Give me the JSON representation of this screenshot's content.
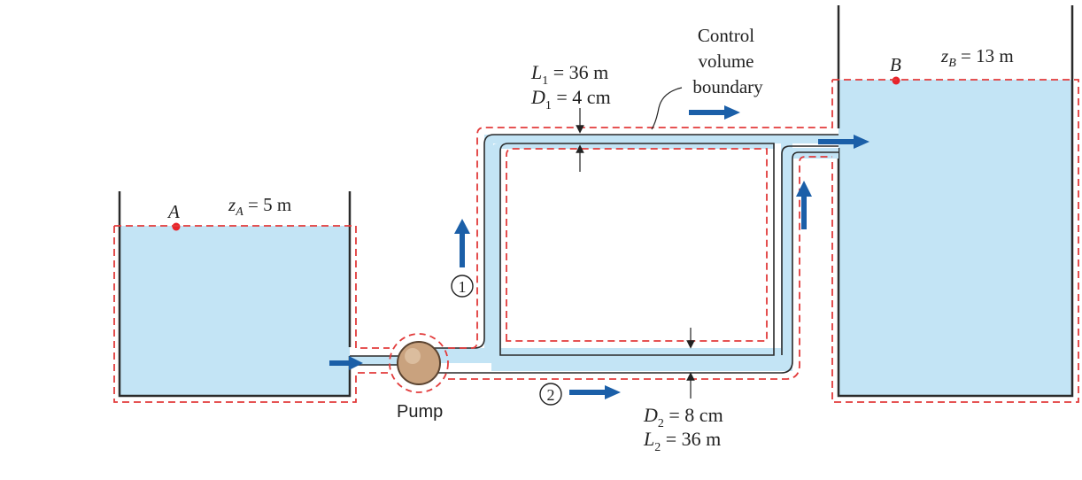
{
  "colors": {
    "water": "#c3e4f5",
    "wall": "#2a2a2a",
    "boundary": "#e23b3b",
    "arrow": "#1b5fa8",
    "point": "#e8232a",
    "pump_fill": "#c9a27e"
  },
  "tank_a": {
    "point_label": "A",
    "elevation": {
      "var": "z",
      "sub": "A",
      "rest": " = 5 m"
    }
  },
  "tank_b": {
    "point_label": "B",
    "elevation": {
      "var": "z",
      "sub": "B",
      "rest": " = 13 m"
    }
  },
  "pump": {
    "label": "Pump"
  },
  "pipe1": {
    "number": "1",
    "length": {
      "var": "L",
      "sub": "1",
      "rest": " = 36 m"
    },
    "diameter": {
      "var": "D",
      "sub": "1",
      "rest": " = 4 cm"
    }
  },
  "pipe2": {
    "number": "2",
    "length": {
      "var": "L",
      "sub": "2",
      "rest": " = 36 m"
    },
    "diameter": {
      "var": "D",
      "sub": "2",
      "rest": " = 8 cm"
    }
  },
  "control_volume": {
    "lines": [
      "Control",
      "volume",
      "boundary"
    ]
  }
}
